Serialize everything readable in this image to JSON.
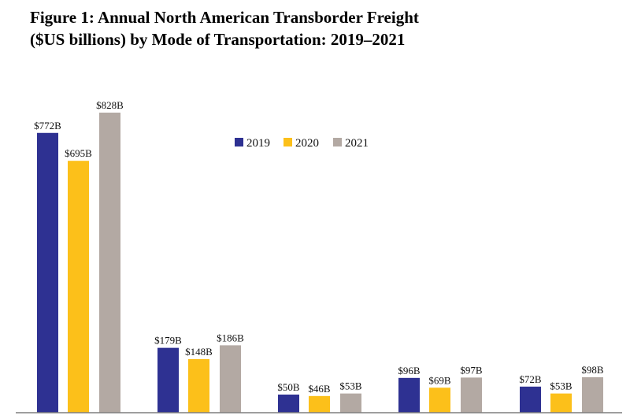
{
  "title": {
    "line1": "Figure 1: Annual North American Transborder Freight",
    "line2": "($US billions) by Mode of Transportation: 2019–2021"
  },
  "colors": {
    "2019": "#2e3192",
    "2020": "#fcc01a",
    "2021": "#b3a9a3",
    "axis": "#7f7f7f"
  },
  "chart_data": {
    "type": "bar",
    "title": "Figure 1: Annual North American Transborder Freight ($US billions) by Mode of Transportation: 2019–2021",
    "categories": [
      "",
      "",
      "",
      "",
      ""
    ],
    "series": [
      {
        "name": "2019",
        "values": [
          772,
          179,
          50,
          96,
          72
        ],
        "labels": [
          "$772B",
          "$179B",
          "$50B",
          "$96B",
          "$72B"
        ]
      },
      {
        "name": "2020",
        "values": [
          695,
          148,
          46,
          69,
          53
        ],
        "labels": [
          "$695B",
          "$148B",
          "$46B",
          "$69B",
          "$53B"
        ]
      },
      {
        "name": "2021",
        "values": [
          828,
          186,
          53,
          97,
          98
        ],
        "labels": [
          "$828B",
          "$186B",
          "$53B",
          "$97B",
          "$98B"
        ]
      }
    ],
    "ylim": [
      0,
      828
    ],
    "grid": false,
    "legend_position": "top-center"
  }
}
